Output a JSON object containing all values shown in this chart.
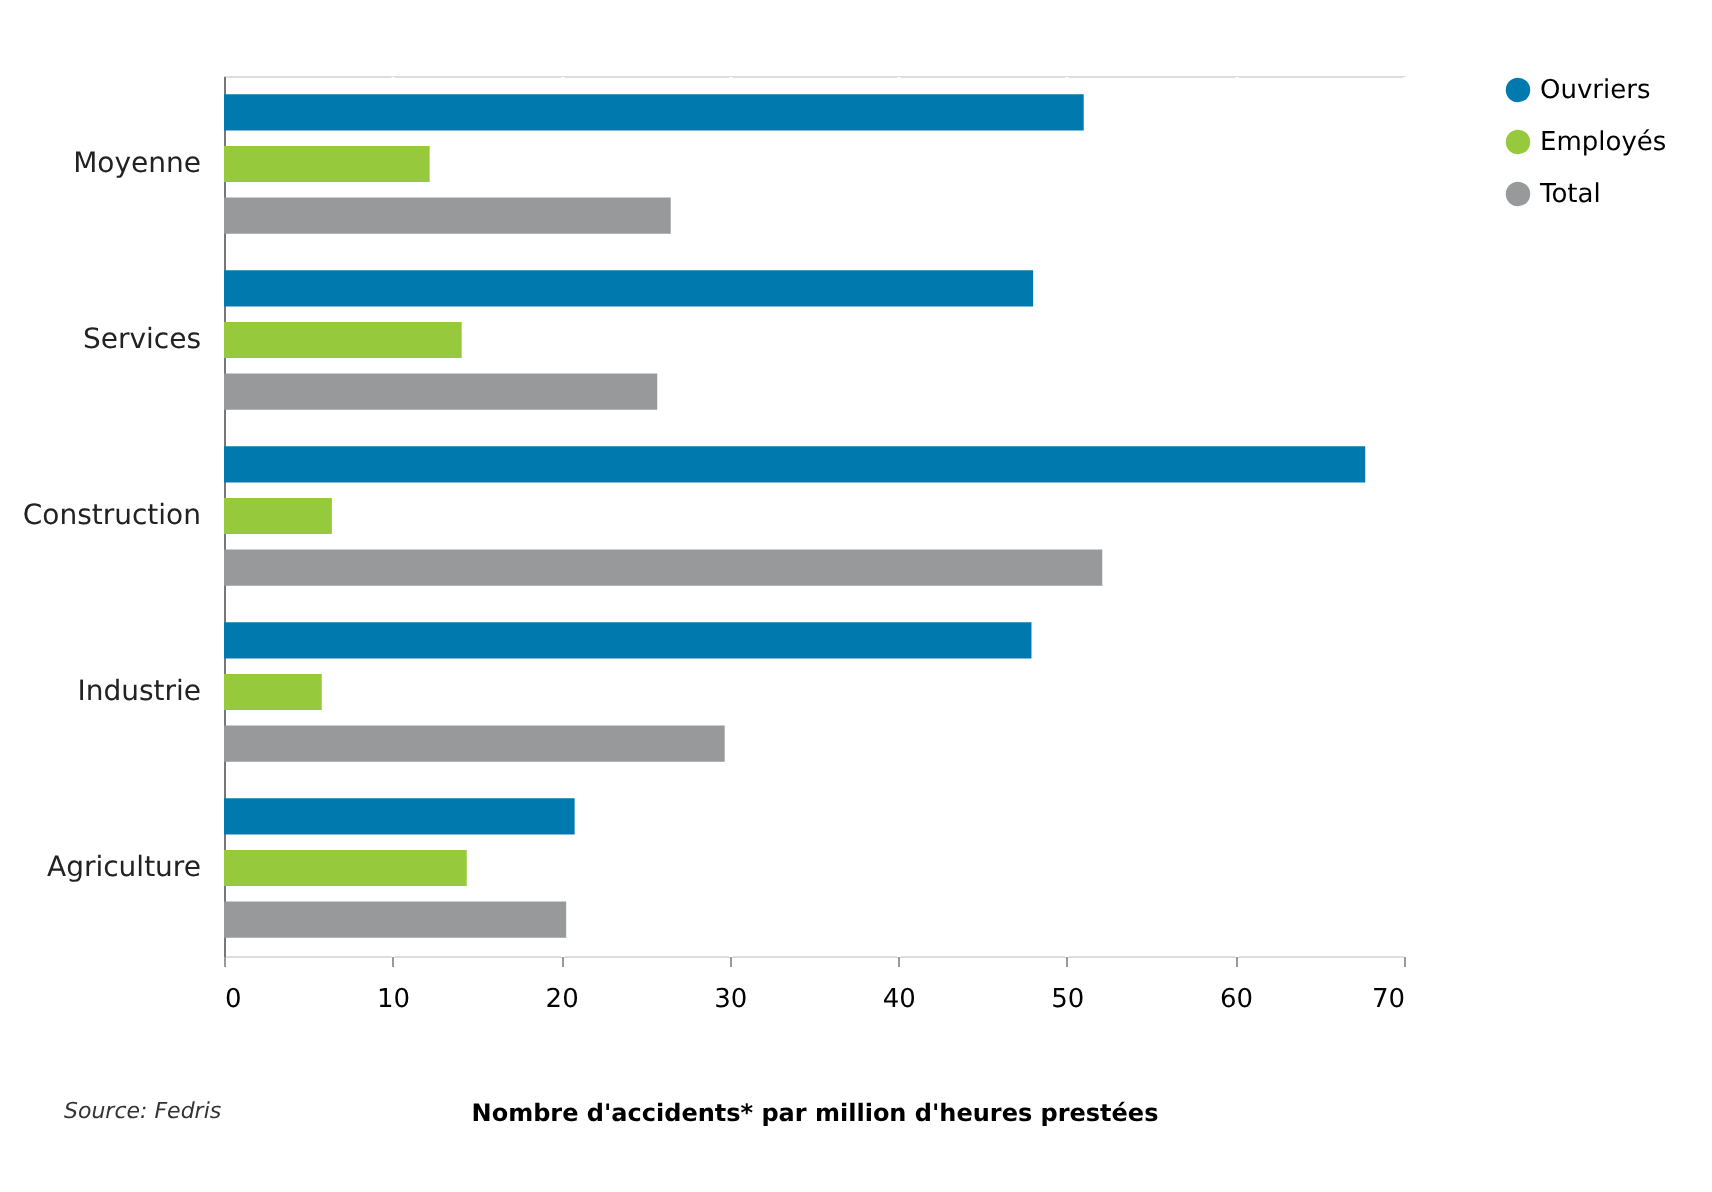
{
  "chart_data": {
    "type": "bar",
    "orientation": "horizontal",
    "categories": [
      "Moyenne",
      "Services",
      "Construction",
      "Industrie",
      "Agriculture"
    ],
    "series": [
      {
        "name": "Ouvriers",
        "color": "#0079ae",
        "values": [
          51.0,
          48.0,
          67.7,
          47.9,
          20.8
        ]
      },
      {
        "name": "Employés",
        "color": "#97c93d",
        "values": [
          12.2,
          14.1,
          6.4,
          5.8,
          14.4
        ]
      },
      {
        "name": "Total",
        "color": "#98999b",
        "values": [
          26.5,
          25.7,
          52.1,
          29.7,
          20.3
        ]
      }
    ],
    "xlim": [
      0,
      70
    ],
    "xticks": [
      0,
      10,
      20,
      30,
      40,
      50,
      60,
      70
    ],
    "xlabel": "Nombre d'accidents* par million d'heures prestées",
    "grid": "x",
    "legend": "right",
    "annotations": [
      "Source: Fedris"
    ]
  }
}
